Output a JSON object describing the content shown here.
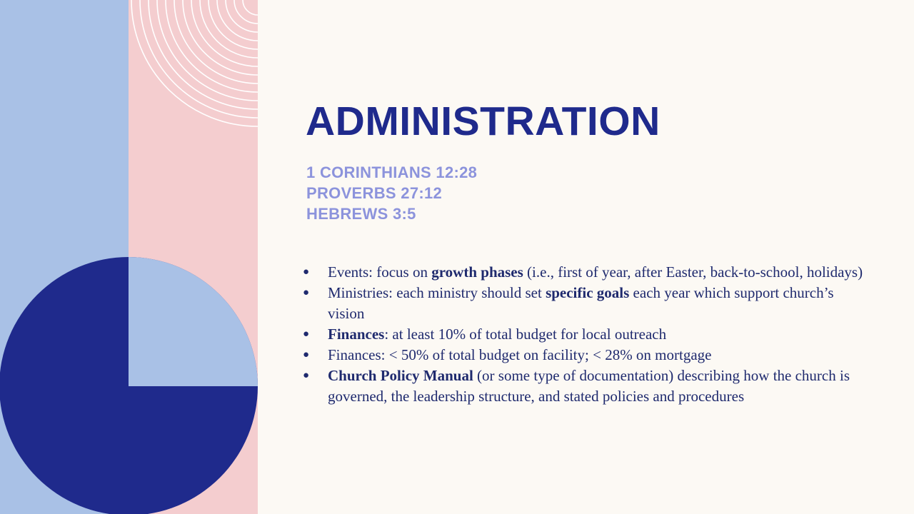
{
  "slide": {
    "title": "ADMINISTRATION",
    "references": [
      "1 CORINTHIANS 12:28",
      "PROVERBS 27:12",
      "HEBREWS 3:5"
    ],
    "bullets": [
      {
        "pre": "Events: focus on ",
        "bold": "growth phases",
        "post": " (i.e., first of year, after Easter, back-to-school, holidays)"
      },
      {
        "pre": "Ministries:  each ministry should set ",
        "bold": "specific goals",
        "post": " each year which support church’s vision"
      },
      {
        "pre": "",
        "bold": "Finances",
        "post": ": at least 10% of total budget for local outreach"
      },
      {
        "pre": "Finances: < 50% of total budget on facility; < 28% on mortgage",
        "bold": "",
        "post": ""
      },
      {
        "pre": "",
        "bold": "Church Policy Manual",
        "post": " (or some type of documentation) describing how the church is governed, the leadership structure, and stated policies and procedures"
      }
    ],
    "bullet_glyph": "●"
  },
  "colors": {
    "background": "#fcf9f4",
    "light_blue": "#a9c1e6",
    "pink": "#f4cdcf",
    "navy": "#1f2a8c",
    "periwinkle": "#8c93dc",
    "body_text": "#1f2a6e"
  }
}
